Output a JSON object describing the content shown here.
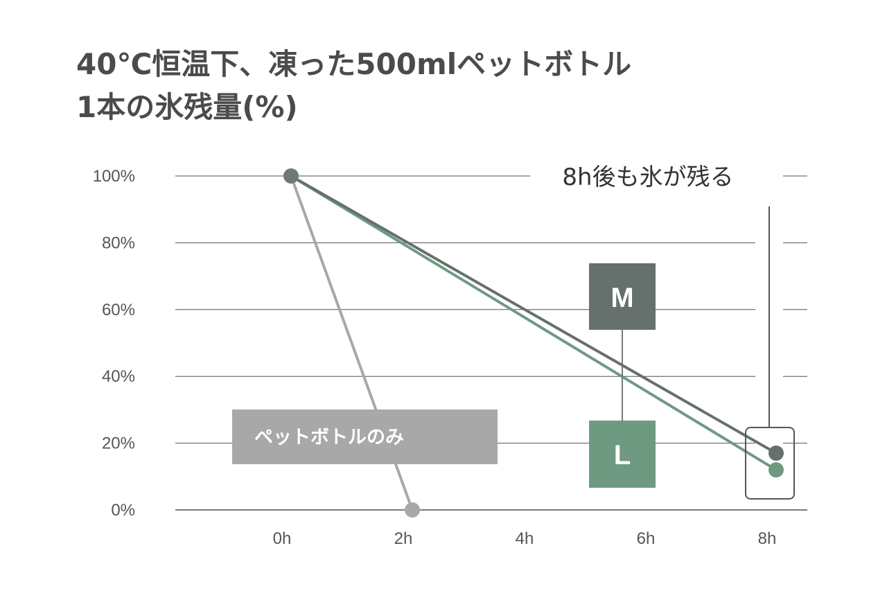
{
  "title": {
    "line1": "40℃恒温下、凍った500mlペットボトル",
    "line2": "1本の氷残量(%)"
  },
  "chart_data": {
    "type": "line",
    "title": "40℃恒温下、凍った500mlペットボトル 1本の氷残量(%)",
    "xlabel": "",
    "ylabel": "",
    "x_ticks": [
      "0h",
      "2h",
      "4h",
      "6h",
      "8h"
    ],
    "y_ticks": [
      "0%",
      "20%",
      "40%",
      "60%",
      "80%",
      "100%"
    ],
    "xlim": [
      0,
      8
    ],
    "ylim": [
      0,
      100
    ],
    "grid": true,
    "series": [
      {
        "name": "ペットボトルのみ",
        "color": "#a8a8a8",
        "x": [
          0,
          2
        ],
        "y": [
          100,
          0
        ]
      },
      {
        "name": "M",
        "color": "#66706c",
        "x": [
          0,
          8
        ],
        "y": [
          100,
          17
        ]
      },
      {
        "name": "L",
        "color": "#6e9a82",
        "x": [
          0,
          8
        ],
        "y": [
          100,
          12
        ]
      }
    ],
    "annotation": "8h後も氷が残る"
  },
  "colors": {
    "grid": "#4f4f4f",
    "petbottle": "#a8a8a8",
    "m": "#66706c",
    "l": "#6e9a82",
    "start_point": "#6f7873"
  }
}
